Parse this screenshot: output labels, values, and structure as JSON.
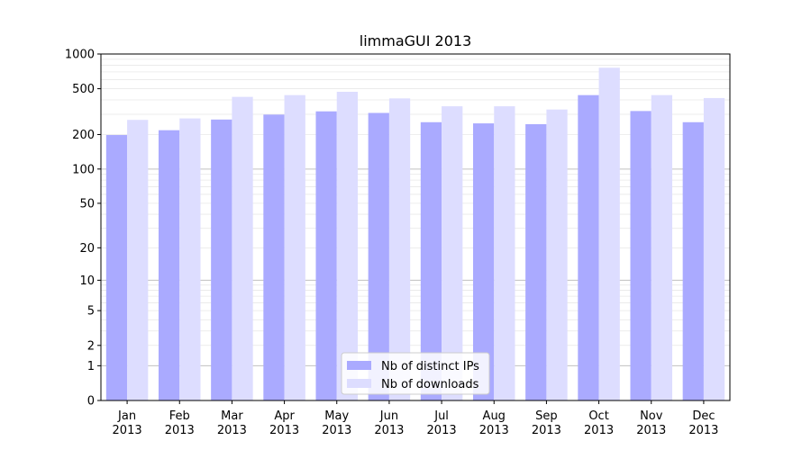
{
  "chart_data": {
    "type": "bar",
    "title": "limmaGUI 2013",
    "xlabel": "",
    "ylabel": "",
    "yscale": "log(1+y)",
    "ylim": [
      0,
      1000
    ],
    "yticks": [
      0,
      1,
      2,
      5,
      10,
      20,
      50,
      100,
      200,
      500,
      1000
    ],
    "ytick_labels": [
      "0",
      "1",
      "2",
      "5",
      "10",
      "20",
      "50",
      "100",
      "200",
      "500",
      "1000"
    ],
    "grid": true,
    "legend_position": "bottom-center",
    "categories": [
      [
        "Jan",
        "2013"
      ],
      [
        "Feb",
        "2013"
      ],
      [
        "Mar",
        "2013"
      ],
      [
        "Apr",
        "2013"
      ],
      [
        "May",
        "2013"
      ],
      [
        "Jun",
        "2013"
      ],
      [
        "Jul",
        "2013"
      ],
      [
        "Aug",
        "2013"
      ],
      [
        "Sep",
        "2013"
      ],
      [
        "Oct",
        "2013"
      ],
      [
        "Nov",
        "2013"
      ],
      [
        "Dec",
        "2013"
      ]
    ],
    "series": [
      {
        "name": "Nb of distinct IPs",
        "color": "#aaaaff",
        "values": [
          198,
          218,
          270,
          298,
          318,
          308,
          256,
          250,
          246,
          440,
          320,
          256
        ]
      },
      {
        "name": "Nb of downloads",
        "color": "#ddddff",
        "values": [
          268,
          276,
          425,
          440,
          470,
          412,
          352,
          352,
          330,
          760,
          440,
          415
        ]
      }
    ]
  }
}
